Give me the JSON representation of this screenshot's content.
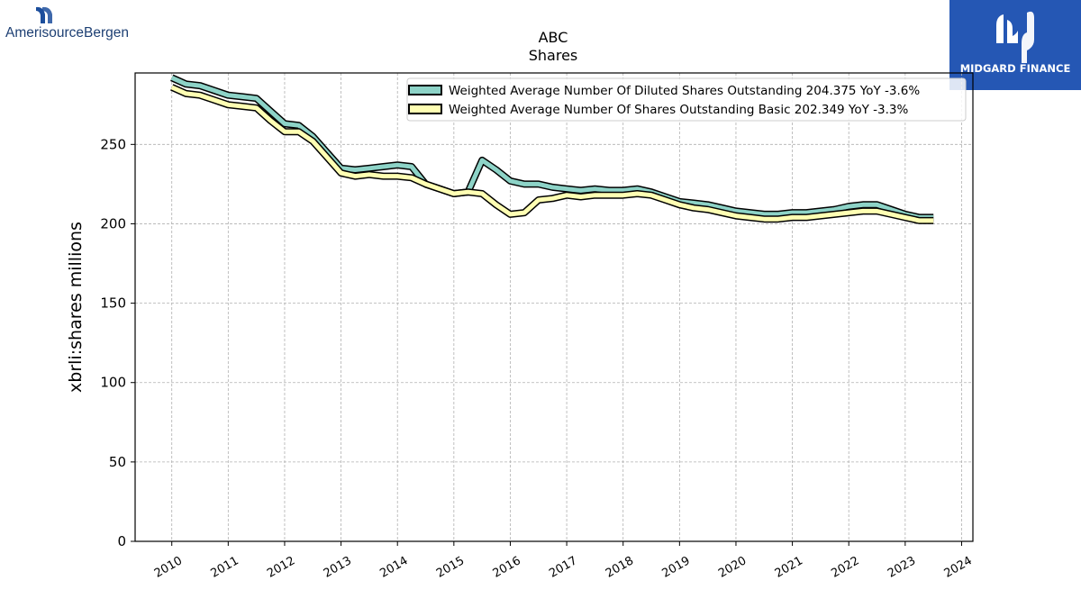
{
  "brand": {
    "company_logo_text": "AmerisourceBergen",
    "publisher_logo_text": "MIDGARD FINANCE",
    "publisher_color": "#2557b4"
  },
  "chart_data": {
    "type": "line",
    "title": "ABC",
    "subtitle": "Shares",
    "xlabel": "",
    "ylabel": "xbrli:shares millions",
    "xlim": [
      2009.35,
      2024.2
    ],
    "ylim": [
      0,
      295
    ],
    "x_ticks": [
      "2010",
      "2011",
      "2012",
      "2013",
      "2014",
      "2015",
      "2016",
      "2017",
      "2018",
      "2019",
      "2020",
      "2021",
      "2022",
      "2023",
      "2024"
    ],
    "y_ticks": [
      "0",
      "50",
      "100",
      "150",
      "200",
      "250"
    ],
    "grid": true,
    "legend_position": "top-right",
    "series": [
      {
        "name": "Weighted Average Number Of Diluted Shares Outstanding  204.375 YoY -3.6%",
        "color": "#8dd3c7",
        "x": [
          2010.0,
          2010.25,
          2010.5,
          2010.75,
          2011.0,
          2011.25,
          2011.5,
          2011.75,
          2012.0,
          2012.25,
          2012.5,
          2012.75,
          2013.0,
          2013.25,
          2013.5,
          2013.75,
          2014.0,
          2014.25,
          2014.5,
          2014.75,
          2015.0,
          2015.25,
          2015.5,
          2015.75,
          2016.0,
          2016.25,
          2016.5,
          2016.75,
          2017.0,
          2017.25,
          2017.5,
          2017.75,
          2018.0,
          2018.25,
          2018.5,
          2018.75,
          2019.0,
          2019.25,
          2019.5,
          2019.75,
          2020.0,
          2020.25,
          2020.5,
          2020.75,
          2021.0,
          2021.25,
          2021.5,
          2021.75,
          2022.0,
          2022.25,
          2022.5,
          2022.75,
          2023.0,
          2023.25,
          2023.5
        ],
        "values": [
          292,
          288,
          287,
          284,
          281,
          280,
          279,
          271,
          263,
          262,
          255,
          245,
          235,
          234,
          235,
          236,
          237,
          236,
          225,
          222,
          219,
          220,
          240,
          234,
          227,
          225,
          225,
          223,
          222,
          221,
          222,
          221,
          221,
          222,
          220,
          217,
          214,
          213,
          212,
          210,
          208,
          207,
          206,
          206,
          207,
          207,
          208,
          209,
          211,
          212,
          212,
          209,
          206,
          204,
          204
        ]
      },
      {
        "name": "Weighted Average Number Of Shares Outstanding Basic  202.349 YoY -3.3%",
        "color": "#ffffb3",
        "x": [
          2010.0,
          2010.25,
          2010.5,
          2010.75,
          2011.0,
          2011.25,
          2011.5,
          2011.75,
          2012.0,
          2012.25,
          2012.5,
          2012.75,
          2013.0,
          2013.25,
          2013.5,
          2013.75,
          2014.0,
          2014.25,
          2014.5,
          2014.75,
          2015.0,
          2015.25,
          2015.5,
          2015.75,
          2016.0,
          2016.25,
          2016.5,
          2016.75,
          2017.0,
          2017.25,
          2017.5,
          2017.75,
          2018.0,
          2018.25,
          2018.5,
          2018.75,
          2019.0,
          2019.25,
          2019.5,
          2019.75,
          2020.0,
          2020.25,
          2020.5,
          2020.75,
          2021.0,
          2021.25,
          2021.5,
          2021.75,
          2022.0,
          2022.25,
          2022.5,
          2022.75,
          2023.0,
          2023.25,
          2023.5
        ],
        "values": [
          286,
          282,
          281,
          278,
          275,
          274,
          273,
          265,
          258,
          258,
          252,
          242,
          232,
          230,
          231,
          230,
          230,
          229,
          225,
          222,
          219,
          220,
          219,
          212,
          206,
          207,
          215,
          216,
          218,
          217,
          218,
          218,
          218,
          219,
          218,
          215,
          212,
          210,
          209,
          207,
          205,
          204,
          203,
          203,
          204,
          204,
          205,
          206,
          207,
          208,
          208,
          206,
          204,
          202,
          202
        ]
      }
    ]
  }
}
